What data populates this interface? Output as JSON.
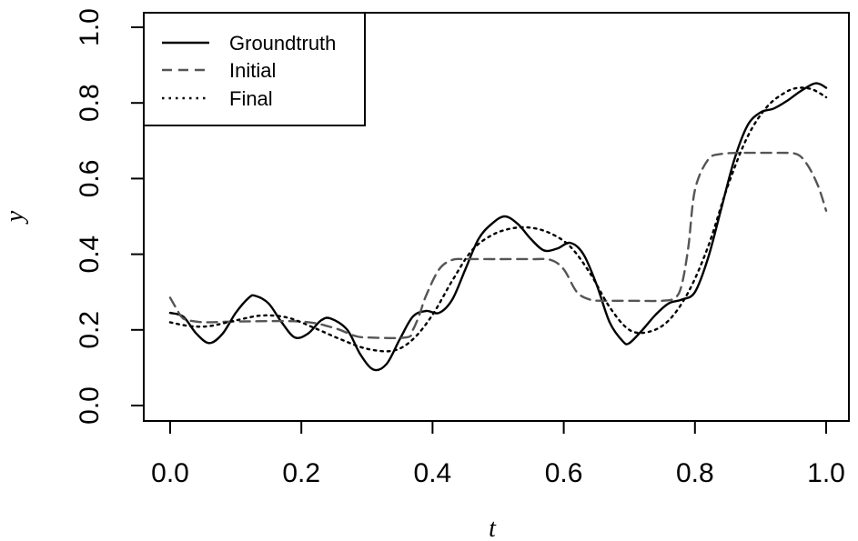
{
  "chart_data": {
    "type": "line",
    "title": "",
    "xlabel": "t",
    "ylabel": "y",
    "xlim": [
      0,
      1
    ],
    "ylim": [
      0,
      1
    ],
    "x_ticks": [
      "0.0",
      "0.2",
      "0.4",
      "0.6",
      "0.8",
      "1.0"
    ],
    "y_ticks": [
      "0.0",
      "0.2",
      "0.4",
      "0.6",
      "0.8",
      "1.0"
    ],
    "grid": false,
    "legend_position": "top-left",
    "series": [
      {
        "name": "Groundtruth",
        "style": "solid",
        "color": "#000000",
        "x": [
          0.0,
          0.02,
          0.04,
          0.06,
          0.08,
          0.1,
          0.12,
          0.13,
          0.15,
          0.17,
          0.19,
          0.21,
          0.23,
          0.245,
          0.27,
          0.29,
          0.31,
          0.33,
          0.35,
          0.37,
          0.39,
          0.41,
          0.43,
          0.45,
          0.47,
          0.49,
          0.51,
          0.53,
          0.55,
          0.57,
          0.59,
          0.61,
          0.63,
          0.65,
          0.67,
          0.69,
          0.7,
          0.72,
          0.74,
          0.76,
          0.78,
          0.8,
          0.82,
          0.84,
          0.86,
          0.88,
          0.9,
          0.92,
          0.94,
          0.96,
          0.98,
          0.99,
          1.0
        ],
        "y": [
          0.245,
          0.235,
          0.19,
          0.165,
          0.19,
          0.245,
          0.285,
          0.29,
          0.27,
          0.22,
          0.18,
          0.19,
          0.225,
          0.23,
          0.2,
          0.135,
          0.095,
          0.11,
          0.175,
          0.235,
          0.25,
          0.245,
          0.28,
          0.36,
          0.44,
          0.48,
          0.5,
          0.48,
          0.44,
          0.41,
          0.415,
          0.43,
          0.4,
          0.32,
          0.22,
          0.17,
          0.165,
          0.2,
          0.24,
          0.27,
          0.28,
          0.3,
          0.39,
          0.52,
          0.65,
          0.74,
          0.775,
          0.785,
          0.805,
          0.83,
          0.85,
          0.85,
          0.84
        ]
      },
      {
        "name": "Initial",
        "style": "dashed",
        "color": "#555555",
        "x": [
          0.0,
          0.01,
          0.02,
          0.04,
          0.06,
          0.1,
          0.2,
          0.25,
          0.28,
          0.3,
          0.36,
          0.37,
          0.38,
          0.39,
          0.41,
          0.43,
          0.45,
          0.5,
          0.55,
          0.58,
          0.6,
          0.62,
          0.64,
          0.66,
          0.7,
          0.75,
          0.77,
          0.78,
          0.79,
          0.8,
          0.82,
          0.84,
          0.87,
          0.9,
          0.93,
          0.95,
          0.96,
          0.97,
          0.98,
          0.99,
          1.0
        ],
        "y": [
          0.285,
          0.255,
          0.23,
          0.222,
          0.22,
          0.222,
          0.222,
          0.205,
          0.185,
          0.18,
          0.18,
          0.2,
          0.24,
          0.29,
          0.36,
          0.385,
          0.387,
          0.387,
          0.387,
          0.385,
          0.36,
          0.3,
          0.28,
          0.277,
          0.277,
          0.277,
          0.285,
          0.32,
          0.42,
          0.57,
          0.65,
          0.665,
          0.668,
          0.668,
          0.668,
          0.667,
          0.66,
          0.64,
          0.61,
          0.57,
          0.515
        ]
      },
      {
        "name": "Final",
        "style": "dotted",
        "color": "#000000",
        "x": [
          0.0,
          0.03,
          0.06,
          0.1,
          0.14,
          0.18,
          0.22,
          0.26,
          0.3,
          0.34,
          0.37,
          0.4,
          0.43,
          0.46,
          0.49,
          0.52,
          0.55,
          0.58,
          0.61,
          0.64,
          0.67,
          0.7,
          0.73,
          0.76,
          0.79,
          0.82,
          0.85,
          0.88,
          0.91,
          0.94,
          0.96,
          0.98,
          1.0
        ],
        "y": [
          0.22,
          0.21,
          0.21,
          0.225,
          0.238,
          0.232,
          0.205,
          0.175,
          0.15,
          0.145,
          0.175,
          0.24,
          0.33,
          0.41,
          0.45,
          0.468,
          0.47,
          0.455,
          0.42,
          0.35,
          0.26,
          0.2,
          0.195,
          0.225,
          0.3,
          0.42,
          0.58,
          0.71,
          0.79,
          0.83,
          0.84,
          0.835,
          0.815
        ]
      }
    ]
  }
}
